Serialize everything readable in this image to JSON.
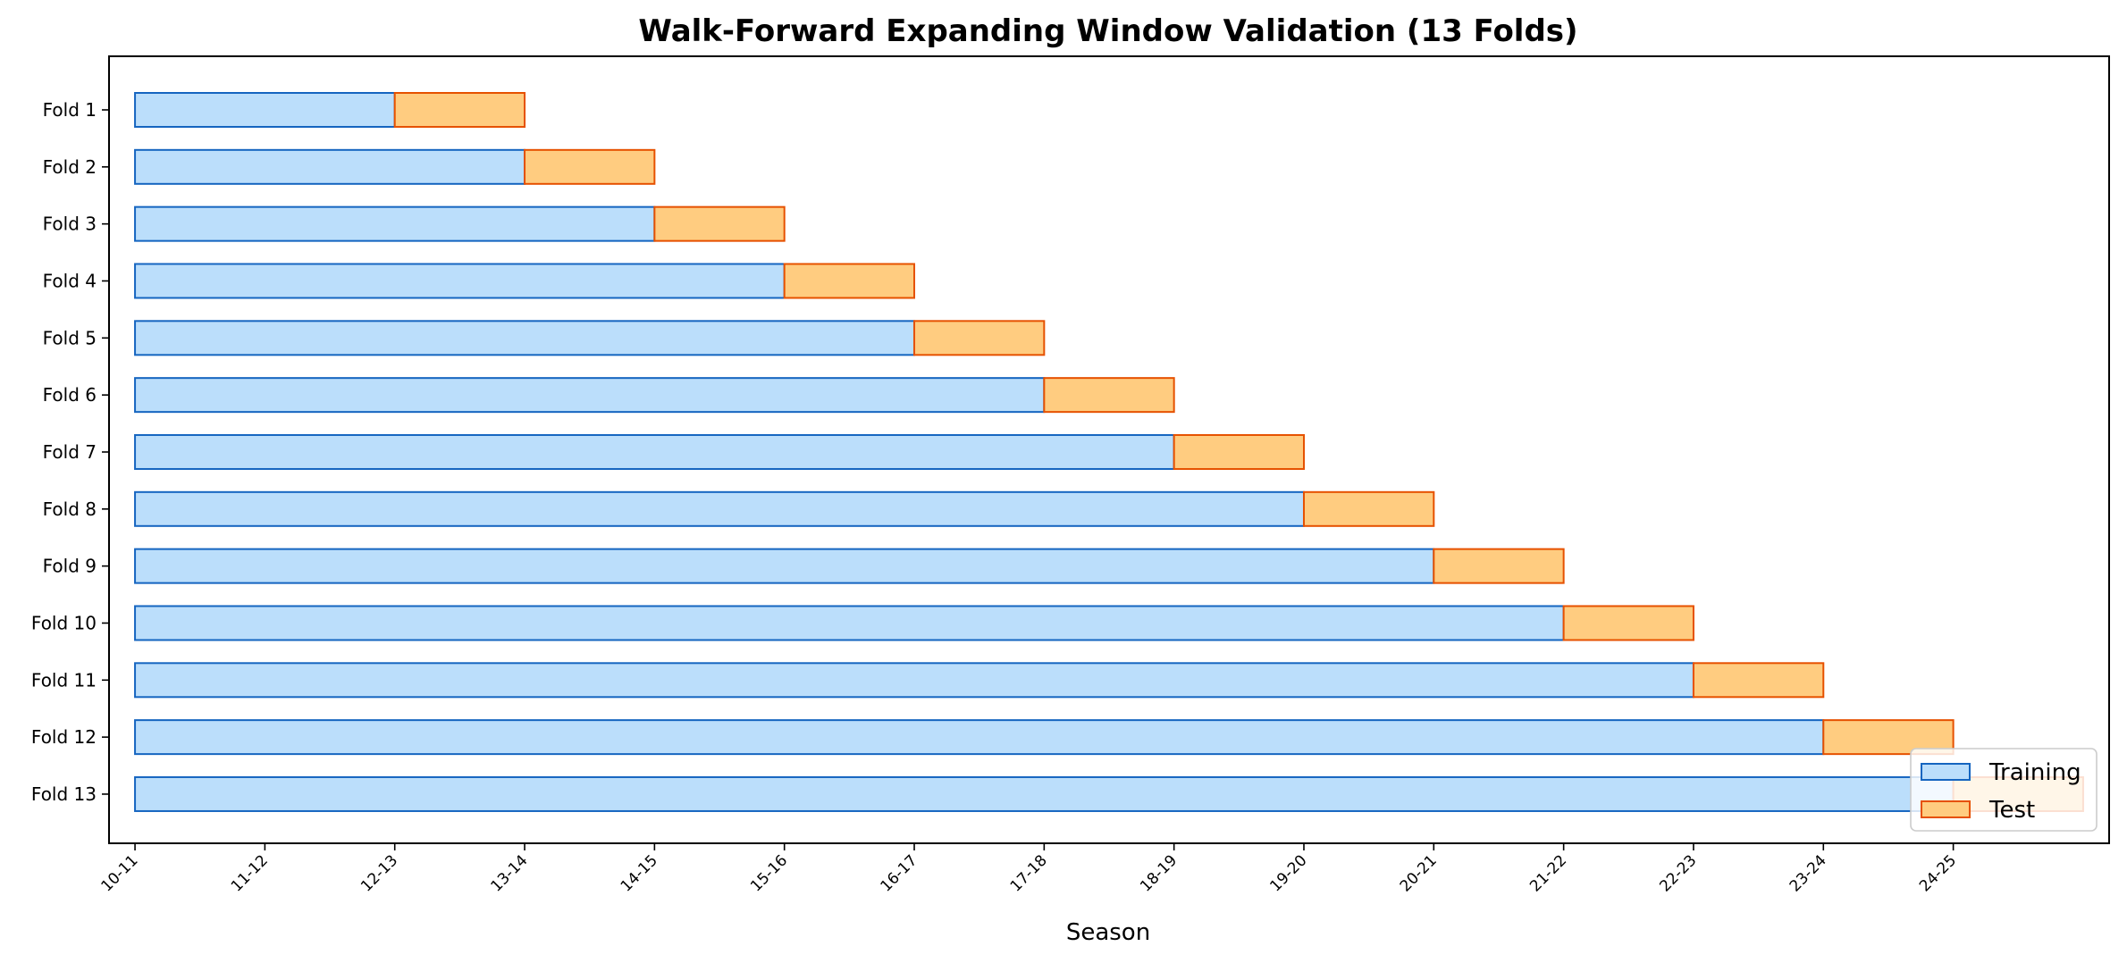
{
  "chart_data": {
    "type": "bar",
    "orientation": "horizontal",
    "stacked": true,
    "title": "Walk-Forward Expanding Window Validation (13 Folds)",
    "xlabel": "Season",
    "ylabel": "",
    "categories": [
      "Fold 1",
      "Fold 2",
      "Fold 3",
      "Fold 4",
      "Fold 5",
      "Fold 6",
      "Fold 7",
      "Fold 8",
      "Fold 9",
      "Fold 10",
      "Fold 11",
      "Fold 12",
      "Fold 13"
    ],
    "x_tick_labels": [
      "10-11",
      "11-12",
      "12-13",
      "13-14",
      "14-15",
      "15-16",
      "16-17",
      "17-18",
      "18-19",
      "19-20",
      "20-21",
      "21-22",
      "22-23",
      "23-24",
      "24-25"
    ],
    "xlim": [
      -0.2,
      15.2
    ],
    "series": [
      {
        "name": "Training",
        "start": [
          0,
          0,
          0,
          0,
          0,
          0,
          0,
          0,
          0,
          0,
          0,
          0,
          0
        ],
        "length": [
          2,
          3,
          4,
          5,
          6,
          7,
          8,
          9,
          10,
          11,
          12,
          13,
          14
        ],
        "fill": "#bbdefb",
        "edge": "#1565c0"
      },
      {
        "name": "Test",
        "start": [
          2,
          3,
          4,
          5,
          6,
          7,
          8,
          9,
          10,
          11,
          12,
          13,
          14
        ],
        "length": [
          1,
          1,
          1,
          1,
          1,
          1,
          1,
          1,
          1,
          1,
          1,
          1,
          1
        ],
        "fill": "#ffcc80",
        "edge": "#e65100"
      }
    ],
    "legend": {
      "position": "lower-right",
      "entries": [
        "Training",
        "Test"
      ]
    },
    "grid": false
  }
}
